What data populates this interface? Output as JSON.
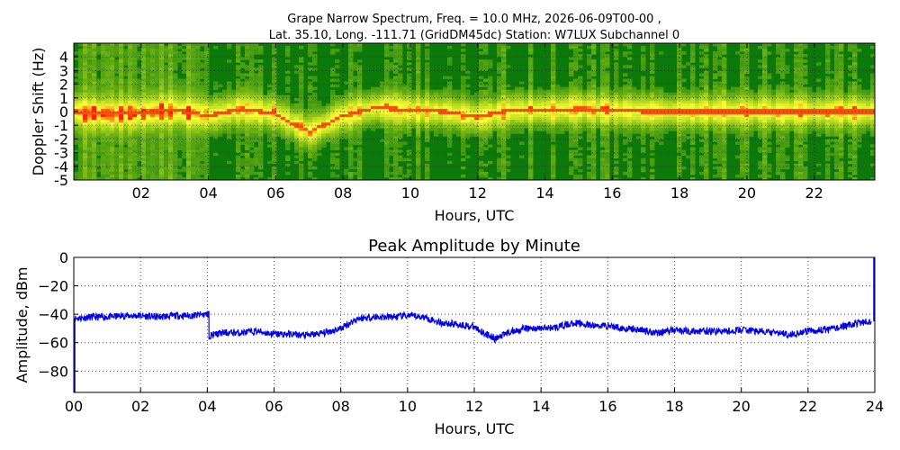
{
  "figure": {
    "title_line1": "Grape Narrow Spectrum, Freq. = 10.0 MHz, 2026-06-09T00-00 ,",
    "title_line2": "Lat.  35.10, Long. -111.71 (GridDM45dc) Station: W7LUX Subchannel 0"
  },
  "chart_data": [
    {
      "type": "heatmap",
      "title": "",
      "xlabel": "Hours, UTC",
      "ylabel": "Doppler Shift (Hz)",
      "xlim": [
        0,
        23.8
      ],
      "ylim": [
        -5,
        5
      ],
      "x_ticks": [
        2,
        4,
        6,
        8,
        10,
        12,
        14,
        16,
        18,
        20,
        22
      ],
      "x_tick_labels": [
        "02",
        "04",
        "06",
        "08",
        "10",
        "12",
        "14",
        "16",
        "18",
        "20",
        "22"
      ],
      "y_ticks": [
        -5,
        -4,
        -3,
        -2,
        -1,
        0,
        1,
        2,
        3,
        4
      ],
      "y_tick_labels": [
        "-5",
        "-4",
        "-3",
        "-2",
        "-1",
        "0",
        "1",
        "2",
        "3",
        "4"
      ],
      "grid": true,
      "colors": {
        "background_low": "#0b7a0b",
        "mid": "#9ccc1a",
        "high": "#ffff33",
        "peak": "#ff2200"
      },
      "peak_doppler_trace": {
        "hours": [
          0,
          1,
          2,
          3,
          4,
          5,
          6,
          7,
          8,
          9,
          10,
          11,
          12,
          13,
          14,
          15,
          16,
          17,
          18,
          19,
          20,
          21,
          22,
          23,
          23.8
        ],
        "doppler": [
          0,
          -0.2,
          -0.1,
          0.1,
          -0.3,
          0.2,
          -0.2,
          -1.5,
          -0.3,
          0.3,
          0.1,
          0,
          -0.4,
          0.1,
          0.1,
          0.2,
          0.1,
          0,
          0,
          0,
          0,
          0,
          0,
          0,
          0
        ]
      }
    },
    {
      "type": "line",
      "title": "Peak Amplitude by Minute",
      "xlabel": "Hours, UTC",
      "ylabel": "Amplitude, dBm",
      "xlim": [
        0,
        24
      ],
      "ylim": [
        -95,
        0
      ],
      "x_ticks": [
        0,
        2,
        4,
        6,
        8,
        10,
        12,
        14,
        16,
        18,
        20,
        22,
        24
      ],
      "x_tick_labels": [
        "00",
        "02",
        "04",
        "06",
        "08",
        "10",
        "12",
        "14",
        "16",
        "18",
        "20",
        "22",
        "24"
      ],
      "y_ticks": [
        0,
        -20,
        -40,
        -60,
        -80
      ],
      "y_tick_labels": [
        "0",
        "−20",
        "−40",
        "−60",
        "−80"
      ],
      "grid": true,
      "series": [
        {
          "color": "#0000ee",
          "x": [
            0,
            0.5,
            1,
            1.5,
            2,
            2.5,
            3,
            3.5,
            4,
            4.05,
            4.5,
            5,
            5.5,
            6,
            6.5,
            7,
            7.5,
            8,
            8.5,
            9,
            9.5,
            10,
            10.5,
            11,
            11.5,
            12,
            12.5,
            12.6,
            13,
            13.5,
            14,
            14.5,
            15,
            15.5,
            16,
            16.5,
            17,
            17.5,
            18,
            18.5,
            19,
            19.5,
            20,
            20.5,
            21,
            21.5,
            22,
            22.5,
            23,
            23.5,
            23.9
          ],
          "y": [
            -43,
            -42,
            -42,
            -41,
            -41,
            -42,
            -41,
            -41,
            -40,
            -55,
            -53,
            -53,
            -52,
            -54,
            -54,
            -55,
            -53,
            -50,
            -43,
            -42,
            -42,
            -41,
            -42,
            -46,
            -47,
            -49,
            -56,
            -58,
            -53,
            -50,
            -50,
            -49,
            -46,
            -48,
            -48,
            -50,
            -51,
            -53,
            -51,
            -52,
            -52,
            -52,
            -51,
            -52,
            -53,
            -54,
            -52,
            -51,
            -49,
            -46,
            -45
          ]
        }
      ]
    }
  ]
}
